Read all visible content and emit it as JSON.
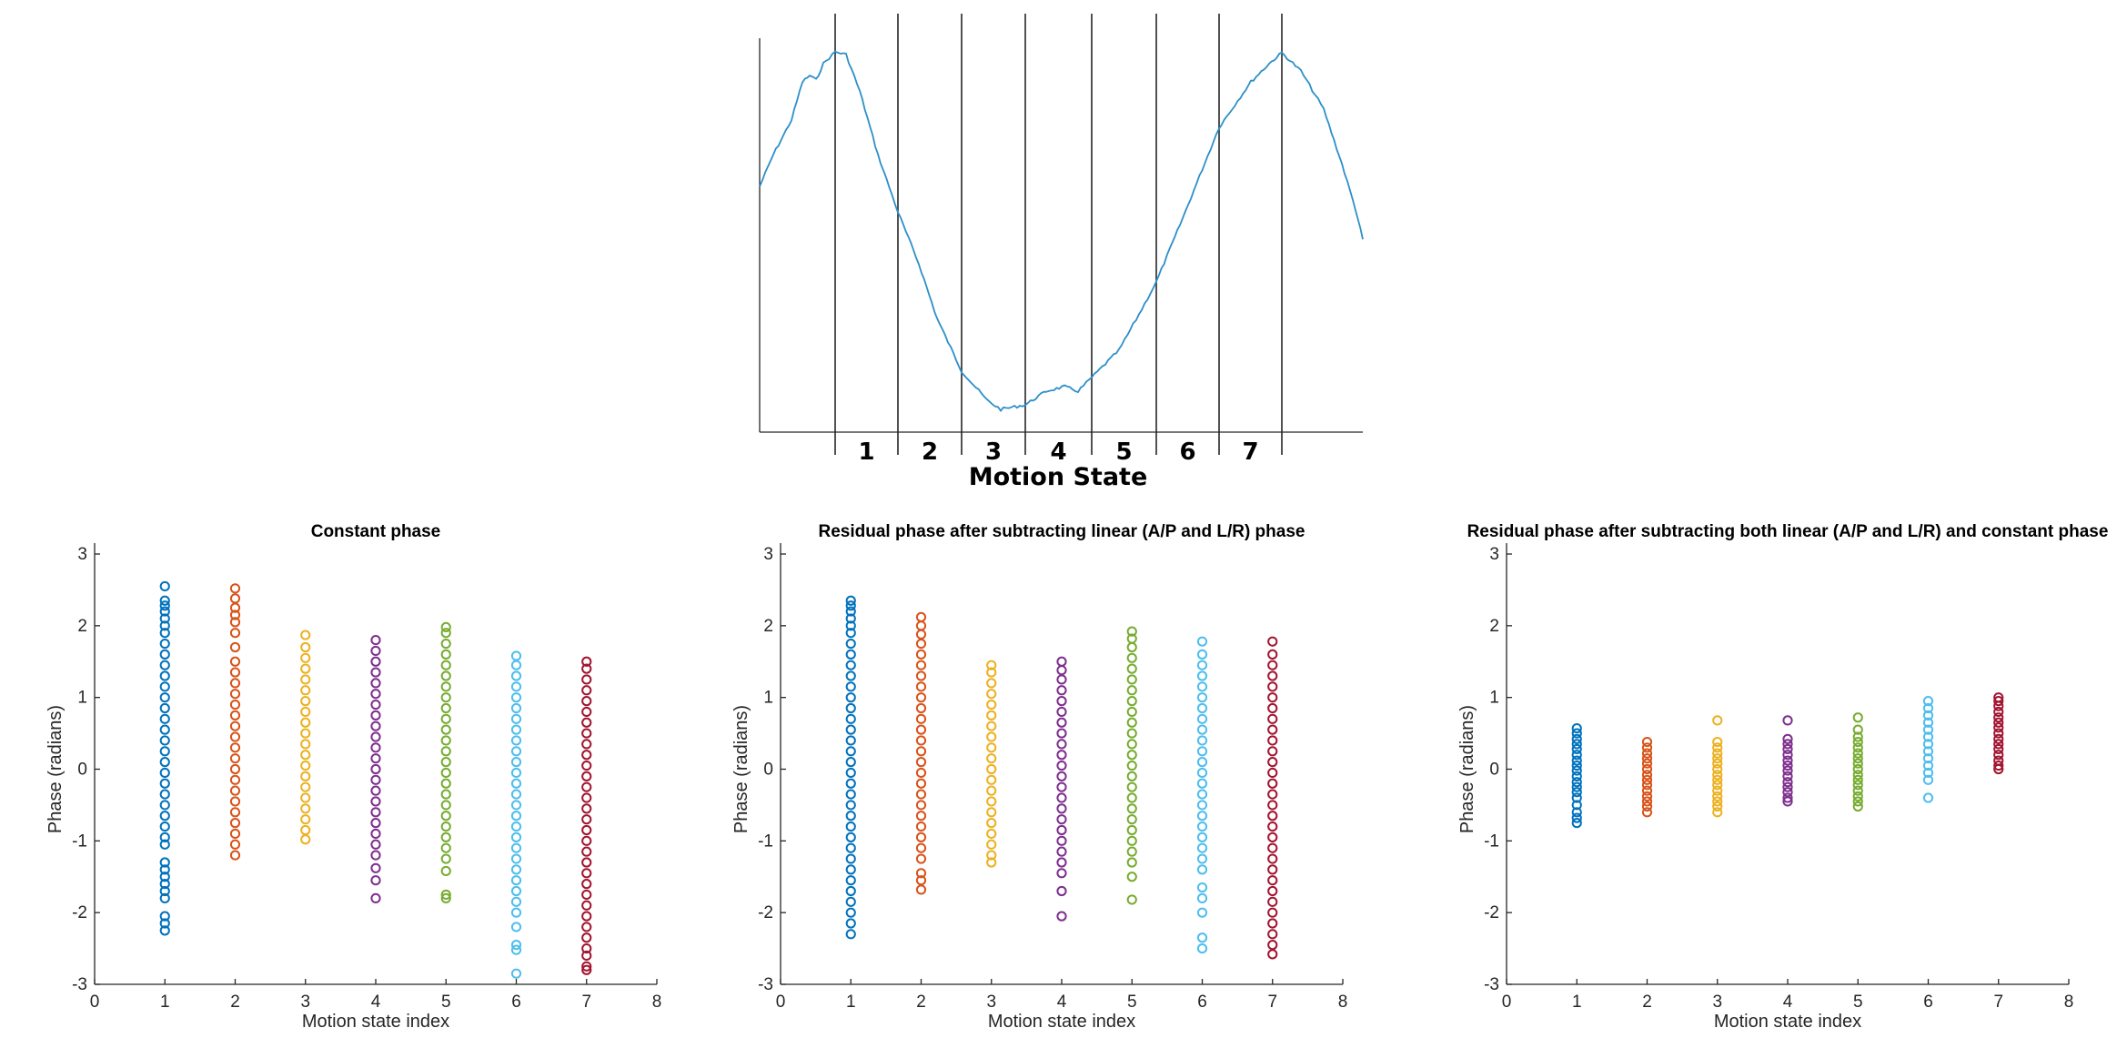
{
  "chart_data": [
    {
      "type": "line",
      "title": "",
      "xlabel": "Motion State",
      "state_labels": [
        "1",
        "2",
        "3",
        "4",
        "5",
        "6",
        "7"
      ],
      "colors": {
        "line": "#2d8fc9",
        "boundaries": "#262626"
      }
    },
    {
      "type": "scatter",
      "title": "Constant phase",
      "xlabel": "Motion state index",
      "ylabel": "Phase (radians)",
      "xlim": [
        0,
        8
      ],
      "ylim": [
        -3,
        3
      ],
      "xticks": [
        "0",
        "1",
        "2",
        "3",
        "4",
        "5",
        "6",
        "7",
        "8"
      ],
      "yticks": [
        "-3",
        "-2",
        "-1",
        "0",
        "1",
        "2",
        "3"
      ],
      "series": [
        {
          "x": 1,
          "values": [
            2.55,
            2.35,
            2.28,
            2.2,
            2.1,
            2.0,
            1.9,
            1.75,
            1.6,
            1.45,
            1.3,
            1.15,
            1.0,
            0.85,
            0.7,
            0.55,
            0.4,
            0.25,
            0.1,
            -0.05,
            -0.2,
            -0.35,
            -0.5,
            -0.65,
            -0.8,
            -0.95,
            -1.05,
            -1.3,
            -1.4,
            -1.5,
            -1.6,
            -1.7,
            -1.8,
            -2.05,
            -2.15,
            -2.25
          ]
        },
        {
          "x": 2,
          "values": [
            2.52,
            2.38,
            2.25,
            2.15,
            2.05,
            1.9,
            1.7,
            1.5,
            1.35,
            1.2,
            1.05,
            0.9,
            0.75,
            0.6,
            0.45,
            0.3,
            0.15,
            0.0,
            -0.15,
            -0.3,
            -0.45,
            -0.6,
            -0.75,
            -0.9,
            -1.05,
            -1.2
          ]
        },
        {
          "x": 3,
          "values": [
            1.87,
            1.7,
            1.55,
            1.4,
            1.25,
            1.1,
            0.95,
            0.8,
            0.65,
            0.5,
            0.35,
            0.2,
            0.05,
            -0.1,
            -0.25,
            -0.4,
            -0.55,
            -0.7,
            -0.85,
            -0.98
          ]
        },
        {
          "x": 4,
          "values": [
            1.8,
            1.65,
            1.5,
            1.35,
            1.2,
            1.05,
            0.9,
            0.75,
            0.6,
            0.45,
            0.3,
            0.15,
            0.0,
            -0.15,
            -0.3,
            -0.45,
            -0.6,
            -0.75,
            -0.9,
            -1.05,
            -1.2,
            -1.38,
            -1.55,
            -1.8
          ]
        },
        {
          "x": 5,
          "values": [
            1.98,
            1.9,
            1.75,
            1.6,
            1.45,
            1.3,
            1.15,
            1.0,
            0.85,
            0.7,
            0.55,
            0.4,
            0.25,
            0.1,
            -0.05,
            -0.2,
            -0.35,
            -0.5,
            -0.65,
            -0.8,
            -0.95,
            -1.1,
            -1.25,
            -1.42,
            -1.75,
            -1.8
          ]
        },
        {
          "x": 6,
          "values": [
            1.58,
            1.45,
            1.3,
            1.15,
            1.0,
            0.85,
            0.7,
            0.55,
            0.4,
            0.25,
            0.1,
            -0.05,
            -0.2,
            -0.35,
            -0.5,
            -0.65,
            -0.8,
            -0.95,
            -1.1,
            -1.25,
            -1.4,
            -1.55,
            -1.7,
            -1.85,
            -2.0,
            -2.2,
            -2.45,
            -2.52,
            -2.85
          ]
        },
        {
          "x": 7,
          "values": [
            1.5,
            1.4,
            1.25,
            1.1,
            0.95,
            0.8,
            0.65,
            0.5,
            0.35,
            0.2,
            0.05,
            -0.1,
            -0.25,
            -0.4,
            -0.55,
            -0.7,
            -0.85,
            -1.0,
            -1.15,
            -1.3,
            -1.45,
            -1.6,
            -1.75,
            -1.9,
            -2.05,
            -2.2,
            -2.35,
            -2.5,
            -2.6,
            -2.75,
            -2.8
          ]
        }
      ]
    },
    {
      "type": "scatter",
      "title": "Residual phase after subtracting linear (A/P and L/R) phase",
      "xlabel": "Motion state index",
      "ylabel": "Phase (radians)",
      "xlim": [
        0,
        8
      ],
      "ylim": [
        -3,
        3
      ],
      "xticks": [
        "0",
        "1",
        "2",
        "3",
        "4",
        "5",
        "6",
        "7",
        "8"
      ],
      "yticks": [
        "-3",
        "-2",
        "-1",
        "0",
        "1",
        "2",
        "3"
      ],
      "series": [
        {
          "x": 1,
          "values": [
            2.35,
            2.28,
            2.2,
            2.1,
            2.0,
            1.9,
            1.75,
            1.6,
            1.45,
            1.3,
            1.15,
            1.0,
            0.85,
            0.7,
            0.55,
            0.4,
            0.25,
            0.1,
            -0.05,
            -0.2,
            -0.35,
            -0.5,
            -0.65,
            -0.8,
            -0.95,
            -1.1,
            -1.25,
            -1.4,
            -1.55,
            -1.7,
            -1.85,
            -2.0,
            -2.15,
            -2.3
          ]
        },
        {
          "x": 2,
          "values": [
            2.12,
            2.0,
            1.88,
            1.75,
            1.6,
            1.45,
            1.3,
            1.15,
            1.0,
            0.85,
            0.7,
            0.55,
            0.4,
            0.25,
            0.1,
            -0.05,
            -0.2,
            -0.35,
            -0.5,
            -0.65,
            -0.8,
            -0.95,
            -1.1,
            -1.25,
            -1.45,
            -1.55,
            -1.68
          ]
        },
        {
          "x": 3,
          "values": [
            1.45,
            1.35,
            1.2,
            1.05,
            0.9,
            0.75,
            0.6,
            0.45,
            0.3,
            0.15,
            0.0,
            -0.15,
            -0.3,
            -0.45,
            -0.6,
            -0.75,
            -0.9,
            -1.05,
            -1.2,
            -1.3
          ]
        },
        {
          "x": 4,
          "values": [
            1.5,
            1.38,
            1.25,
            1.1,
            0.95,
            0.8,
            0.65,
            0.5,
            0.35,
            0.2,
            0.05,
            -0.1,
            -0.25,
            -0.4,
            -0.55,
            -0.7,
            -0.85,
            -1.0,
            -1.15,
            -1.3,
            -1.45,
            -1.7,
            -2.05
          ]
        },
        {
          "x": 5,
          "values": [
            1.92,
            1.82,
            1.7,
            1.55,
            1.4,
            1.25,
            1.1,
            0.95,
            0.8,
            0.65,
            0.5,
            0.35,
            0.2,
            0.05,
            -0.1,
            -0.25,
            -0.4,
            -0.55,
            -0.7,
            -0.85,
            -1.0,
            -1.15,
            -1.3,
            -1.5,
            -1.82
          ]
        },
        {
          "x": 6,
          "values": [
            1.78,
            1.6,
            1.45,
            1.3,
            1.15,
            1.0,
            0.85,
            0.7,
            0.55,
            0.4,
            0.25,
            0.1,
            -0.05,
            -0.2,
            -0.35,
            -0.5,
            -0.65,
            -0.8,
            -0.95,
            -1.1,
            -1.25,
            -1.4,
            -1.65,
            -1.8,
            -2.0,
            -2.35,
            -2.5
          ]
        },
        {
          "x": 7,
          "values": [
            1.78,
            1.6,
            1.45,
            1.3,
            1.15,
            1.0,
            0.85,
            0.7,
            0.55,
            0.4,
            0.25,
            0.1,
            -0.05,
            -0.2,
            -0.35,
            -0.5,
            -0.65,
            -0.8,
            -0.95,
            -1.1,
            -1.25,
            -1.4,
            -1.55,
            -1.7,
            -1.85,
            -2.0,
            -2.15,
            -2.3,
            -2.45,
            -2.58
          ]
        }
      ]
    },
    {
      "type": "scatter",
      "title": "Residual phase after subtracting both linear (A/P and L/R) and constant phase",
      "xlabel": "Motion state index",
      "ylabel": "Phase (radians)",
      "xlim": [
        0,
        8
      ],
      "ylim": [
        -3,
        3
      ],
      "xticks": [
        "0",
        "1",
        "2",
        "3",
        "4",
        "5",
        "6",
        "7",
        "8"
      ],
      "yticks": [
        "-3",
        "-2",
        "-1",
        "0",
        "1",
        "2",
        "3"
      ],
      "series": [
        {
          "x": 1,
          "values": [
            0.57,
            0.5,
            0.42,
            0.35,
            0.28,
            0.2,
            0.12,
            0.05,
            -0.02,
            -0.1,
            -0.18,
            -0.25,
            -0.32,
            -0.4,
            -0.5,
            -0.6,
            -0.68,
            -0.75
          ]
        },
        {
          "x": 2,
          "values": [
            0.38,
            0.3,
            0.22,
            0.15,
            0.08,
            0.0,
            -0.08,
            -0.15,
            -0.22,
            -0.3,
            -0.38,
            -0.45,
            -0.52,
            -0.6
          ]
        },
        {
          "x": 3,
          "values": [
            0.68,
            0.38,
            0.3,
            0.22,
            0.15,
            0.08,
            0.0,
            -0.08,
            -0.15,
            -0.22,
            -0.3,
            -0.38,
            -0.45,
            -0.52,
            -0.6
          ]
        },
        {
          "x": 4,
          "values": [
            0.68,
            0.42,
            0.35,
            0.28,
            0.2,
            0.12,
            0.05,
            -0.02,
            -0.1,
            -0.18,
            -0.25,
            -0.32,
            -0.4,
            -0.45
          ]
        },
        {
          "x": 5,
          "values": [
            0.72,
            0.55,
            0.45,
            0.38,
            0.3,
            0.22,
            0.15,
            0.08,
            0.0,
            -0.08,
            -0.15,
            -0.22,
            -0.3,
            -0.38,
            -0.45,
            -0.52
          ]
        },
        {
          "x": 6,
          "values": [
            0.95,
            0.85,
            0.75,
            0.65,
            0.55,
            0.45,
            0.35,
            0.25,
            0.15,
            0.05,
            -0.05,
            -0.15,
            -0.4
          ]
        },
        {
          "x": 7,
          "values": [
            1.0,
            0.95,
            0.88,
            0.8,
            0.72,
            0.65,
            0.58,
            0.5,
            0.42,
            0.35,
            0.28,
            0.2,
            0.12,
            0.05,
            0.0
          ]
        }
      ]
    }
  ],
  "colors": [
    "#0072bd",
    "#d95319",
    "#edb120",
    "#7e2f8e",
    "#77ac30",
    "#4dbeee",
    "#a2142f"
  ]
}
